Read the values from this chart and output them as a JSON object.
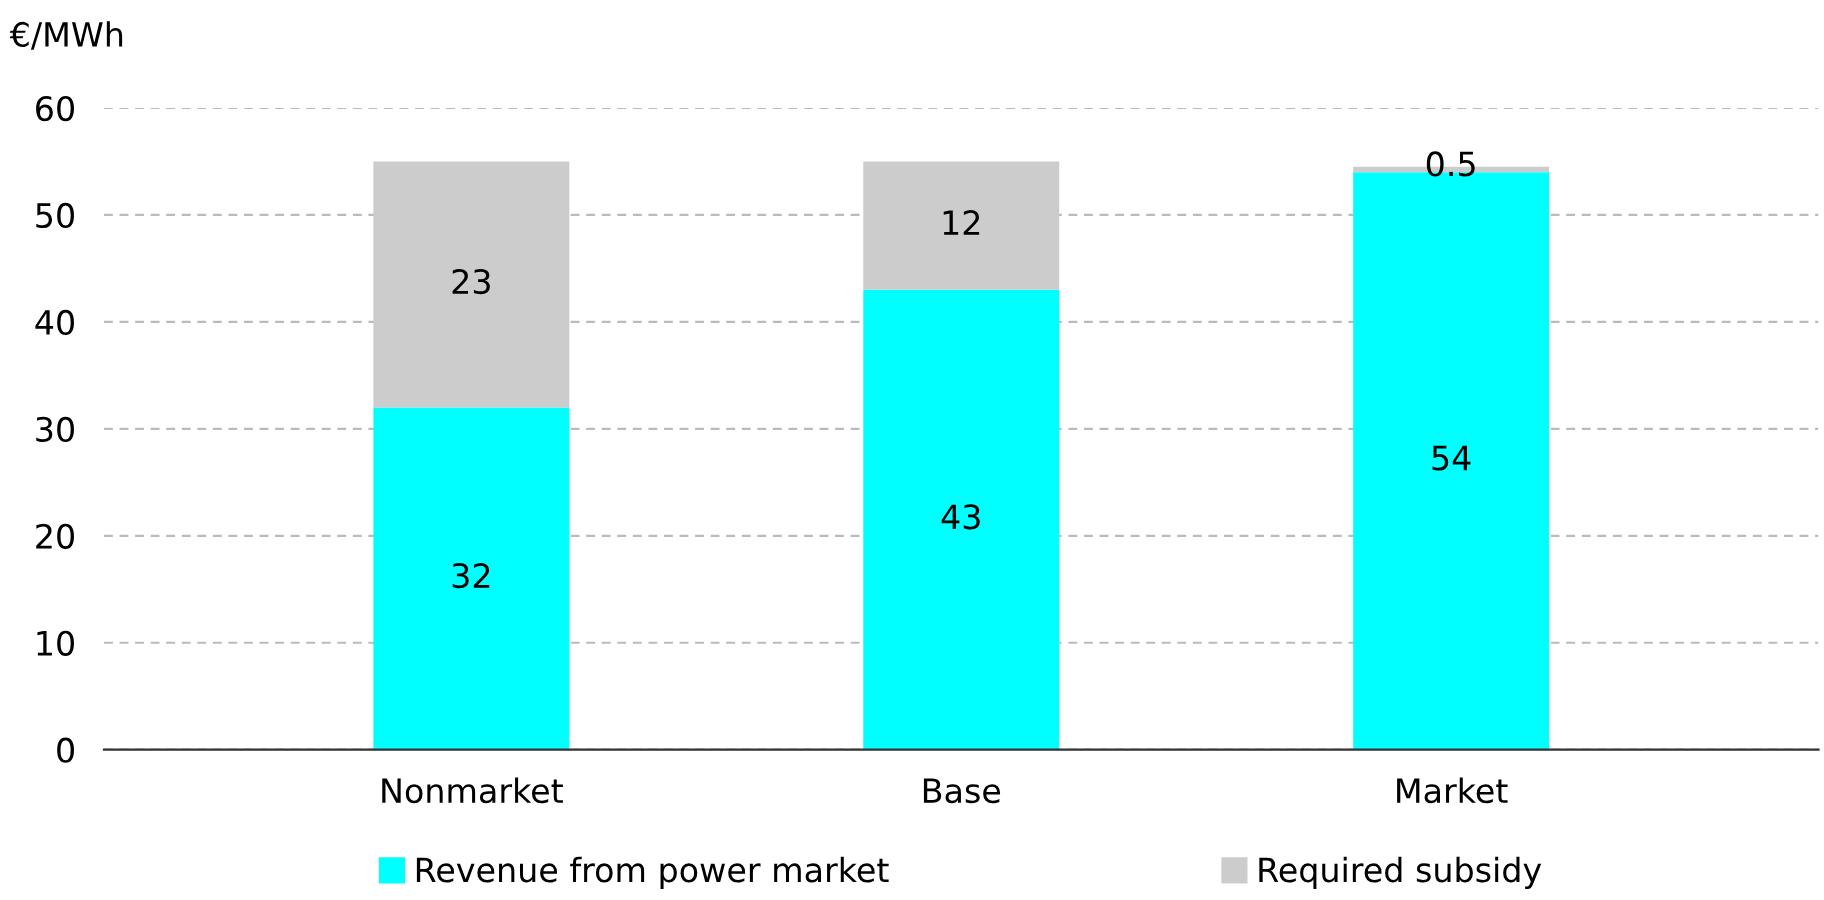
{
  "chart_data": {
    "type": "bar",
    "stacked": true,
    "ylabel": "€/MWh",
    "categories": [
      "Nonmarket",
      "Base",
      "Market"
    ],
    "series": [
      {
        "name": "Revenue from power market",
        "color": "#00ffff",
        "values": [
          32,
          43,
          54
        ]
      },
      {
        "name": "Required subsidy",
        "color": "#cccccc",
        "values": [
          23,
          12,
          0.5
        ]
      }
    ],
    "ylim": [
      0,
      60
    ],
    "yticks": [
      0,
      10,
      20,
      30,
      40,
      50,
      60
    ],
    "grid": "y",
    "legend": "bottom",
    "data_labels": true
  }
}
